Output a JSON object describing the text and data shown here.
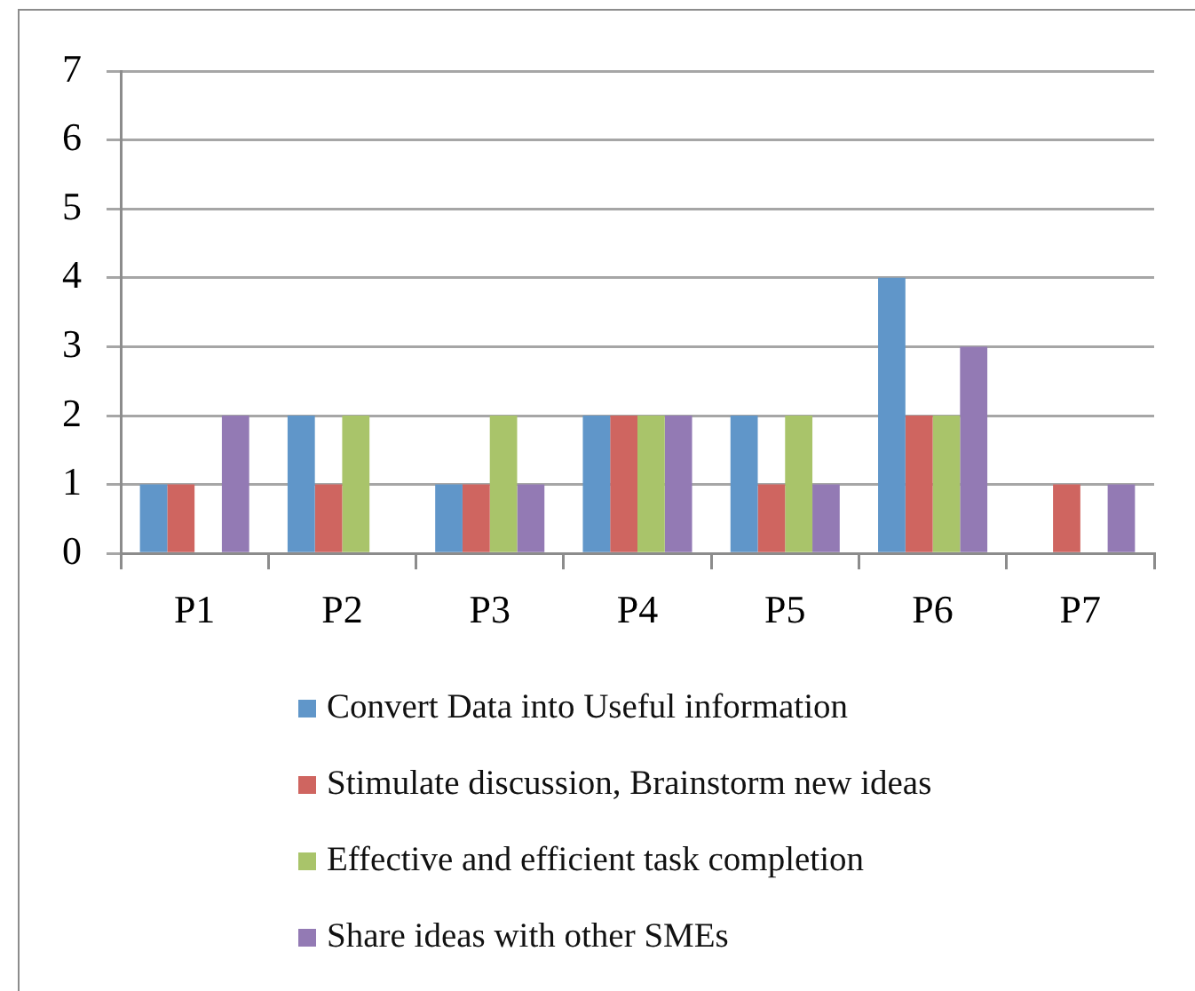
{
  "chart_data": {
    "type": "bar",
    "categories": [
      "P1",
      "P2",
      "P3",
      "P4",
      "P5",
      "P6",
      "P7"
    ],
    "series": [
      {
        "name": "Convert Data into Useful information",
        "color": "#6096c9",
        "values": [
          1,
          2,
          1,
          2,
          2,
          4,
          0
        ]
      },
      {
        "name": "Stimulate discussion, Brainstorm new ideas",
        "color": "#cf6560",
        "values": [
          1,
          1,
          1,
          2,
          1,
          2,
          1
        ]
      },
      {
        "name": "Effective and efficient task completion",
        "color": "#a9c46a",
        "values": [
          0,
          2,
          2,
          2,
          2,
          2,
          0
        ]
      },
      {
        "name": "Share ideas with other SMEs",
        "color": "#937ab4",
        "values": [
          2,
          0,
          1,
          2,
          1,
          3,
          1
        ]
      }
    ],
    "ylim": [
      0,
      7
    ],
    "yticks": [
      0,
      1,
      2,
      3,
      4,
      5,
      6,
      7
    ],
    "grid": "y",
    "legend": "bottom"
  }
}
